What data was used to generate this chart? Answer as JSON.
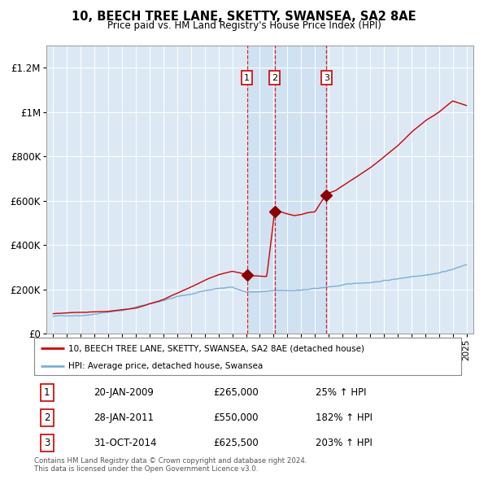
{
  "title": "10, BEECH TREE LANE, SKETTY, SWANSEA, SA2 8AE",
  "subtitle": "Price paid vs. HM Land Registry's House Price Index (HPI)",
  "background_color": "#ffffff",
  "plot_bg_color": "#dce9f5",
  "red_line_color": "#cc0000",
  "blue_line_color": "#7bafd4",
  "sale_marker_color": "#8b0000",
  "vline_color": "#cc0000",
  "sales": [
    {
      "date_num": 2009.06,
      "price": 265000,
      "label": "1"
    },
    {
      "date_num": 2011.08,
      "price": 550000,
      "label": "2"
    },
    {
      "date_num": 2014.83,
      "price": 625500,
      "label": "3"
    }
  ],
  "sale_labels_info": [
    {
      "num": "1",
      "date": "20-JAN-2009",
      "price": "£265,000",
      "change": "25% ↑ HPI"
    },
    {
      "num": "2",
      "date": "28-JAN-2011",
      "price": "£550,000",
      "change": "182% ↑ HPI"
    },
    {
      "num": "3",
      "date": "31-OCT-2014",
      "price": "£625,500",
      "change": "203% ↑ HPI"
    }
  ],
  "ylim": [
    0,
    1300000
  ],
  "xlim": [
    1994.5,
    2025.5
  ],
  "footnote": "Contains HM Land Registry data © Crown copyright and database right 2024.\nThis data is licensed under the Open Government Licence v3.0.",
  "legend_line1": "10, BEECH TREE LANE, SKETTY, SWANSEA, SA2 8AE (detached house)",
  "legend_line2": "HPI: Average price, detached house, Swansea"
}
